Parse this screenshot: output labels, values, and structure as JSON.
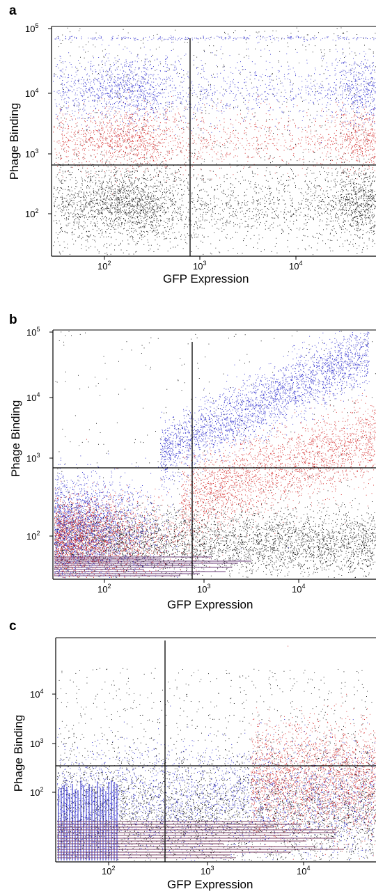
{
  "chart_data": [
    {
      "panel": "a",
      "type": "scatter",
      "xlabel": "GFP Expression",
      "ylabel": "Phage Binding",
      "x_scale": "log",
      "y_scale": "log",
      "x_ticks": [
        100,
        1000,
        10000
      ],
      "y_ticks": [
        100,
        1000,
        10000,
        100000
      ],
      "xlim": [
        30,
        70000
      ],
      "ylim": [
        20,
        100000
      ],
      "gates": {
        "x": 780,
        "y": 600
      },
      "populations": [
        {
          "color": "#2b2bcc",
          "x_range": [
            30,
            70000
          ],
          "y_center": 9000
        },
        {
          "color": "#d42a2a",
          "x_range": [
            30,
            70000
          ],
          "y_center": 1300
        },
        {
          "color": "#111111",
          "x_range": [
            30,
            70000
          ],
          "y_center": 130
        }
      ]
    },
    {
      "panel": "b",
      "type": "scatter",
      "xlabel": "GFP Expression",
      "ylabel": "Phage Binding",
      "x_scale": "log",
      "y_scale": "log",
      "x_ticks": [
        100,
        1000,
        10000
      ],
      "y_ticks": [
        100,
        1000,
        10000,
        100000
      ],
      "xlim": [
        30,
        70000
      ],
      "ylim": [
        20,
        100000
      ],
      "gates": {
        "x": 780,
        "y": 600
      },
      "populations": [
        {
          "color": "#2b2bcc",
          "x_range": [
            30,
            70000
          ],
          "y_center": 30000
        },
        {
          "color": "#d42a2a",
          "x_range": [
            30,
            70000
          ],
          "y_center": 1500
        },
        {
          "color": "#111111",
          "x_range": [
            30,
            70000
          ],
          "y_center": 100
        }
      ]
    },
    {
      "panel": "c",
      "type": "scatter",
      "xlabel": "GFP Expression",
      "ylabel": "Phage Binding",
      "x_scale": "log",
      "y_scale": "log",
      "x_ticks": [
        100,
        1000,
        10000
      ],
      "y_ticks": [
        100,
        1000,
        10000
      ],
      "xlim": [
        20,
        70000
      ],
      "ylim": [
        10,
        100000
      ],
      "gates": {
        "x": 320,
        "y": 170
      },
      "populations": [
        {
          "color": "#2b2bcc",
          "x_range": [
            20,
            70000
          ],
          "y_center": 60
        },
        {
          "color": "#d42a2a",
          "x_range": [
            20,
            70000
          ],
          "y_center": 60
        },
        {
          "color": "#111111",
          "x_range": [
            20,
            70000
          ],
          "y_center": 60
        }
      ]
    }
  ],
  "colors": {
    "blue": "#2b2bcc",
    "red": "#d42a2a",
    "black": "#111111"
  }
}
